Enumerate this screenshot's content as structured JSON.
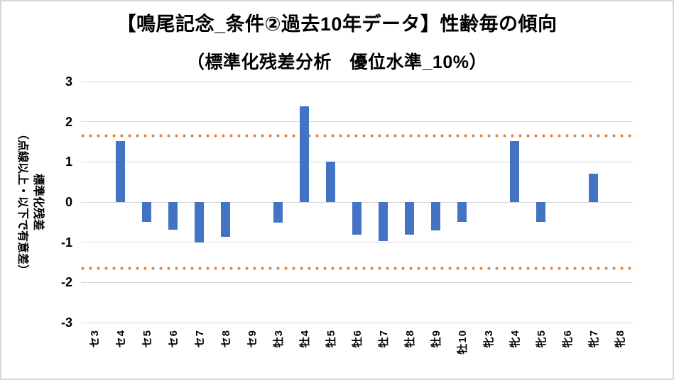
{
  "chart": {
    "title_line1": "【鳴尾記念_条件②過去10年データ】性齢毎の傾向",
    "title_line2": "（標準化残差分析　優位水準_10%）",
    "y_axis_title_line1": "標準化残差",
    "y_axis_title_line2": "（点線以上・以下で有意差）"
  },
  "chart_data": {
    "type": "bar",
    "title": "【鳴尾記念_条件②過去10年データ】性齢毎の傾向",
    "subtitle": "（標準化残差分析　優位水準_10%）",
    "ylabel": "標準化残差（点線以上・以下で有意差）",
    "xlabel": "",
    "categories": [
      "セ3",
      "セ4",
      "セ5",
      "セ6",
      "セ7",
      "セ8",
      "セ9",
      "牡3",
      "牡4",
      "牡5",
      "牡6",
      "牡7",
      "牡8",
      "牡9",
      "牡10",
      "牝3",
      "牝4",
      "牝5",
      "牝6",
      "牝7",
      "牝8"
    ],
    "values": [
      0,
      1.52,
      -0.5,
      -0.69,
      -1.0,
      -0.87,
      0,
      -0.51,
      2.38,
      1.0,
      -0.82,
      -0.97,
      -0.82,
      -0.71,
      -0.5,
      0,
      1.52,
      -0.5,
      0,
      0.71,
      0
    ],
    "ylim": [
      -3,
      3
    ],
    "yticks": [
      3,
      2,
      1,
      0,
      -1,
      -2,
      -3
    ],
    "thresholds": {
      "upper": 1.645,
      "lower": -1.645
    },
    "grid": "horizontal",
    "legend_position": "none",
    "colors": {
      "bar": "#4472C4",
      "threshold_dotted": "#ED7D31",
      "gridline": "#D9D9D9",
      "background": "#FFFFFF",
      "border": "#D6D6D6",
      "text": "#000000"
    }
  }
}
